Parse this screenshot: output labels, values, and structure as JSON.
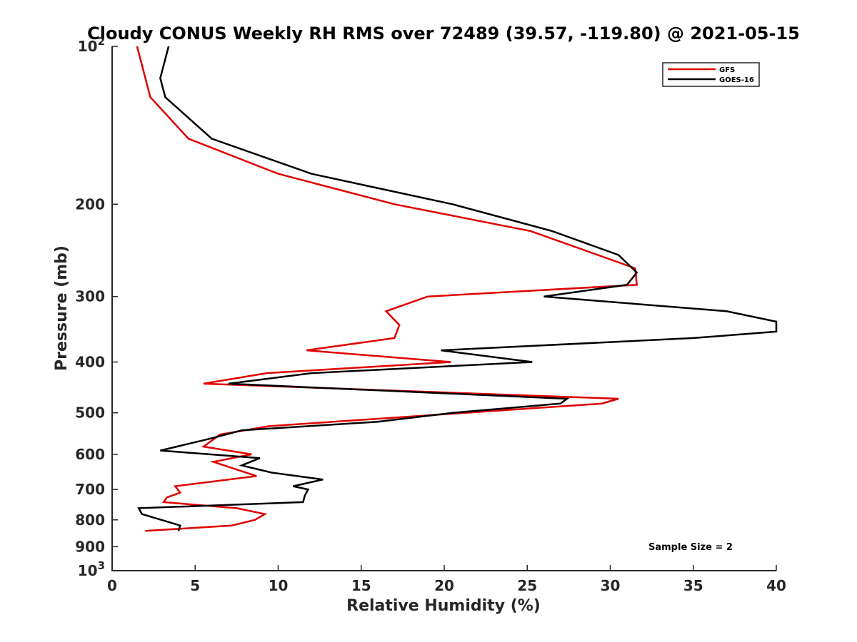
{
  "chart_data": {
    "type": "line",
    "title": "Cloudy CONUS Weekly RH RMS over 72489 (39.57, -119.80) @ 2021-05-15",
    "xlabel": "Relative Humidity (%)",
    "ylabel": "Pressure (mb)",
    "xlim": [
      0,
      40
    ],
    "ylim": [
      100,
      1000
    ],
    "y_scale": "log",
    "y_reversed": true,
    "grid": false,
    "legend_position": "top-right",
    "x_ticks": [
      "0",
      "5",
      "10",
      "15",
      "20",
      "25",
      "30",
      "35",
      "40"
    ],
    "y_ticks": [
      {
        "value": 100,
        "base": "10",
        "exp": "2"
      },
      {
        "value": 200,
        "label": "200"
      },
      {
        "value": 300,
        "label": "300"
      },
      {
        "value": 400,
        "label": "400"
      },
      {
        "value": 500,
        "label": "500"
      },
      {
        "value": 600,
        "label": "600"
      },
      {
        "value": 700,
        "label": "700"
      },
      {
        "value": 800,
        "label": "800"
      },
      {
        "value": 900,
        "label": "900"
      },
      {
        "value": 1000,
        "base": "10",
        "exp": "3"
      }
    ],
    "annotation": "Sample Size = 2",
    "series": [
      {
        "name": "GFS",
        "color": "#e00000",
        "points": [
          [
            1.5,
            100
          ],
          [
            2.3,
            125
          ],
          [
            4.6,
            150
          ],
          [
            10,
            175
          ],
          [
            17,
            200
          ],
          [
            25.2,
            225
          ],
          [
            31.5,
            265
          ],
          [
            31.6,
            285
          ],
          [
            19,
            300
          ],
          [
            16.5,
            320
          ],
          [
            17.3,
            340
          ],
          [
            17,
            360
          ],
          [
            11.7,
            380
          ],
          [
            20.4,
            400
          ],
          [
            9.3,
            420
          ],
          [
            5.5,
            440
          ],
          [
            30.5,
            470
          ],
          [
            29.5,
            480
          ],
          [
            9.5,
            530
          ],
          [
            6.5,
            550
          ],
          [
            5.5,
            580
          ],
          [
            8.4,
            600
          ],
          [
            6.1,
            620
          ],
          [
            8.7,
            660
          ],
          [
            3.8,
            690
          ],
          [
            4.1,
            710
          ],
          [
            3.3,
            725
          ],
          [
            3.1,
            740
          ],
          [
            7.5,
            760
          ],
          [
            9.2,
            780
          ],
          [
            8.6,
            800
          ],
          [
            7.2,
            820
          ],
          [
            2,
            840
          ]
        ]
      },
      {
        "name": "GOES-16",
        "color": "#000000",
        "points": [
          [
            3.4,
            100
          ],
          [
            2.9,
            115
          ],
          [
            3.2,
            125
          ],
          [
            6,
            150
          ],
          [
            12,
            175
          ],
          [
            20.5,
            200
          ],
          [
            26.5,
            225
          ],
          [
            30.5,
            250
          ],
          [
            31.6,
            270
          ],
          [
            31,
            285
          ],
          [
            26,
            300
          ],
          [
            37,
            320
          ],
          [
            40,
            335
          ],
          [
            40,
            350
          ],
          [
            35,
            360
          ],
          [
            19.8,
            380
          ],
          [
            25.3,
            400
          ],
          [
            12,
            420
          ],
          [
            7,
            440
          ],
          [
            27.4,
            470
          ],
          [
            27,
            480
          ],
          [
            20.5,
            500
          ],
          [
            16,
            520
          ],
          [
            7.8,
            540
          ],
          [
            5.9,
            560
          ],
          [
            2.9,
            590
          ],
          [
            8.9,
            610
          ],
          [
            7.8,
            630
          ],
          [
            9.6,
            650
          ],
          [
            12.7,
            670
          ],
          [
            10.9,
            690
          ],
          [
            11.8,
            700
          ],
          [
            11.6,
            720
          ],
          [
            11.5,
            740
          ],
          [
            1.6,
            760
          ],
          [
            1.8,
            780
          ],
          [
            4.1,
            820
          ],
          [
            4,
            840
          ]
        ]
      }
    ]
  }
}
